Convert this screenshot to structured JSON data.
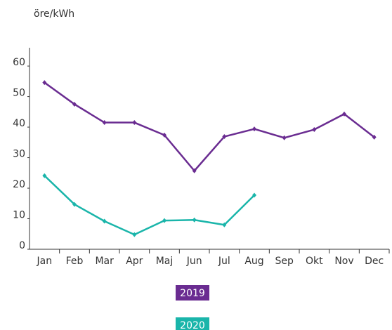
{
  "chart_data": {
    "type": "line",
    "y_label": "öre/kWh",
    "categories": [
      "Jan",
      "Feb",
      "Mar",
      "Apr",
      "Maj",
      "Jun",
      "Jul",
      "Aug",
      "Sep",
      "Okt",
      "Nov",
      "Dec"
    ],
    "series": [
      {
        "name": "2019",
        "color": "#6a2c91",
        "values": [
          54.6,
          47.5,
          41.5,
          41.5,
          37.4,
          25.7,
          36.9,
          39.4,
          36.5,
          39.2,
          44.3,
          36.7
        ]
      },
      {
        "name": "2020",
        "color": "#1ab5aa",
        "values": [
          24.1,
          14.7,
          9.2,
          4.8,
          9.4,
          9.6,
          8.0,
          17.7,
          null,
          null,
          null,
          null
        ]
      }
    ],
    "ylim": [
      0,
      66
    ],
    "yticks": [
      0,
      10,
      20,
      30,
      40,
      50,
      60
    ],
    "grid": false
  }
}
